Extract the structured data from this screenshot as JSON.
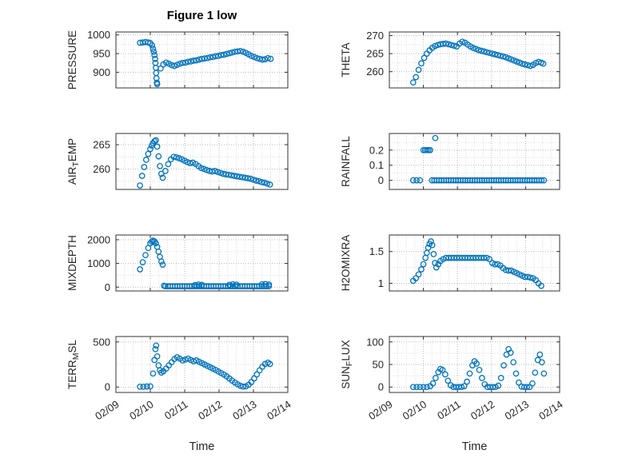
{
  "chart_data": {
    "type": "scatter",
    "figure_title": "Figure 1 low",
    "xlabel": "Time",
    "x_ticks": [
      "02/09",
      "02/10",
      "02/11",
      "02/12",
      "02/13",
      "02/14"
    ],
    "x_range_days": [
      0,
      5
    ],
    "grid": "dotted",
    "legend": "none",
    "colors": {
      "marker": "#0072BD",
      "axis": "#333333",
      "grid_major": "#b9b9b9",
      "grid_minor": "#dedede",
      "tick_text": "#262626"
    },
    "subplots": [
      {
        "ylabel": "PRESSURE",
        "yticks": [
          900,
          950,
          1000
        ],
        "ylim": [
          858,
          1008
        ],
        "x": [
          0.7,
          0.78,
          0.86,
          0.94,
          1.0,
          1.05,
          1.08,
          1.1,
          1.12,
          1.14,
          1.15,
          1.16,
          1.17,
          1.18,
          1.19,
          1.2,
          1.3,
          1.38,
          1.46,
          1.54,
          1.62,
          1.7,
          1.78,
          1.86,
          1.94,
          2.02,
          2.1,
          2.18,
          2.26,
          2.34,
          2.42,
          2.5,
          2.58,
          2.66,
          2.74,
          2.82,
          2.9,
          2.98,
          3.06,
          3.14,
          3.22,
          3.3,
          3.38,
          3.46,
          3.54,
          3.62,
          3.7,
          3.78,
          3.86,
          3.94,
          4.02,
          4.1,
          4.18,
          4.26,
          4.34,
          4.42,
          4.5
        ],
        "y": [
          979,
          980,
          981,
          980,
          978,
          972,
          963,
          955,
          946,
          936,
          925,
          912,
          898,
          884,
          872,
          868,
          910,
          921,
          926,
          923,
          919,
          917,
          920,
          923,
          925,
          926,
          928,
          929,
          931,
          932,
          934,
          936,
          937,
          938,
          940,
          941,
          943,
          944,
          946,
          947,
          949,
          951,
          953,
          955,
          956,
          957,
          955,
          952,
          948,
          944,
          941,
          938,
          936,
          934,
          935,
          938,
          936
        ]
      },
      {
        "ylabel": "THETA",
        "yticks": [
          260,
          265,
          270
        ],
        "ylim": [
          255.5,
          271
        ],
        "x": [
          0.7,
          0.78,
          0.86,
          0.94,
          1.02,
          1.1,
          1.18,
          1.26,
          1.34,
          1.42,
          1.5,
          1.58,
          1.66,
          1.74,
          1.82,
          1.9,
          1.98,
          2.06,
          2.14,
          2.22,
          2.3,
          2.38,
          2.46,
          2.54,
          2.62,
          2.7,
          2.78,
          2.86,
          2.94,
          3.02,
          3.1,
          3.18,
          3.26,
          3.34,
          3.42,
          3.5,
          3.58,
          3.66,
          3.74,
          3.82,
          3.9,
          3.98,
          4.06,
          4.14,
          4.22,
          4.3,
          4.38,
          4.46,
          4.52
        ],
        "y": [
          257.0,
          258.5,
          260.5,
          262.3,
          263.8,
          265.0,
          265.9,
          266.6,
          267.1,
          267.4,
          267.6,
          267.7,
          267.8,
          267.6,
          267.4,
          267.2,
          267.0,
          267.8,
          268.3,
          268.0,
          267.5,
          267.0,
          266.6,
          266.3,
          266.0,
          265.8,
          265.6,
          265.4,
          265.2,
          265.0,
          264.8,
          264.6,
          264.4,
          264.2,
          264.0,
          263.7,
          263.4,
          263.1,
          262.8,
          262.5,
          262.2,
          262.0,
          261.8,
          261.6,
          261.9,
          262.4,
          262.7,
          262.5,
          262.2
        ]
      },
      {
        "ylabel": "AIR_TEMP",
        "yticks": [
          260,
          265
        ],
        "ylim": [
          255.8,
          267.3
        ],
        "x": [
          0.7,
          0.76,
          0.82,
          0.88,
          0.94,
          1.0,
          1.04,
          1.08,
          1.12,
          1.16,
          1.2,
          1.24,
          1.28,
          1.32,
          1.36,
          1.44,
          1.52,
          1.6,
          1.68,
          1.76,
          1.84,
          1.92,
          2.0,
          2.08,
          2.16,
          2.24,
          2.32,
          2.4,
          2.48,
          2.56,
          2.64,
          2.72,
          2.8,
          2.88,
          2.96,
          3.04,
          3.12,
          3.2,
          3.28,
          3.36,
          3.44,
          3.52,
          3.6,
          3.68,
          3.76,
          3.84,
          3.92,
          4.0,
          4.08,
          4.16,
          4.24,
          4.32,
          4.4,
          4.48
        ],
        "y": [
          256.6,
          258.6,
          260.4,
          261.9,
          263.1,
          264.1,
          264.8,
          265.3,
          265.7,
          265.9,
          264.6,
          262.6,
          260.6,
          259.0,
          258.2,
          259.6,
          261.0,
          262.0,
          262.5,
          262.4,
          262.2,
          262.0,
          261.7,
          261.4,
          261.2,
          261.3,
          261.0,
          260.6,
          260.2,
          260.0,
          259.8,
          259.6,
          259.5,
          259.6,
          259.4,
          259.2,
          259.0,
          258.9,
          258.8,
          258.7,
          258.6,
          258.5,
          258.4,
          258.3,
          258.2,
          258.1,
          258.0,
          257.8,
          257.6,
          257.5,
          257.3,
          257.2,
          257.0,
          256.8
        ]
      },
      {
        "ylabel": "RAINFALL",
        "yticks": [
          0,
          0.1,
          0.2
        ],
        "ylim": [
          -0.06,
          0.31
        ],
        "x": [
          0.7,
          0.8,
          0.9,
          1.0,
          1.05,
          1.1,
          1.15,
          1.2,
          1.35
        ],
        "y": [
          0,
          0,
          0,
          0.2,
          0.2,
          0.2,
          0.2,
          0.2,
          0.28
        ],
        "runs": [
          {
            "x0": 1.25,
            "x1": 4.56,
            "dx": 0.07,
            "y": 0
          }
        ]
      },
      {
        "ylabel": "MIXDEPTH",
        "yticks": [
          0,
          1000,
          2000
        ],
        "ylim": [
          -160,
          2200
        ],
        "x": [
          0.7,
          0.78,
          0.86,
          0.94,
          1.0,
          1.04,
          1.08,
          1.12,
          1.16,
          1.2,
          1.24,
          1.28,
          1.32,
          1.36,
          1.4,
          2.3,
          2.4,
          2.5,
          3.3,
          3.4,
          3.5,
          4.25,
          4.35,
          4.45
        ],
        "y": [
          750,
          1050,
          1350,
          1650,
          1850,
          1920,
          1960,
          1930,
          1850,
          1700,
          1500,
          1280,
          1080,
          950,
          60,
          90,
          110,
          95,
          100,
          120,
          105,
          120,
          130,
          110
        ],
        "runs": [
          {
            "x0": 1.44,
            "x1": 4.5,
            "dx": 0.07,
            "y": 40
          }
        ]
      },
      {
        "ylabel": "H2OMIXRA",
        "yticks": [
          1,
          1.5
        ],
        "ylim": [
          0.88,
          1.76
        ],
        "x": [
          0.7,
          0.78,
          0.86,
          0.94,
          1.0,
          1.06,
          1.1,
          1.14,
          1.18,
          1.22,
          1.26,
          1.3,
          1.34,
          1.38,
          1.44,
          1.5,
          1.58,
          1.66,
          1.74,
          1.82,
          1.9,
          1.98,
          2.06,
          2.14,
          2.22,
          2.3,
          2.38,
          2.46,
          2.54,
          2.62,
          2.7,
          2.78,
          2.86,
          2.94,
          3.02,
          3.1,
          3.18,
          3.26,
          3.34,
          3.42,
          3.5,
          3.58,
          3.66,
          3.74,
          3.82,
          3.9,
          3.98,
          4.06,
          4.14,
          4.22,
          4.3,
          4.38,
          4.46
        ],
        "y": [
          1.04,
          1.08,
          1.14,
          1.22,
          1.3,
          1.4,
          1.48,
          1.56,
          1.62,
          1.66,
          1.6,
          1.46,
          1.32,
          1.25,
          1.3,
          1.35,
          1.38,
          1.4,
          1.4,
          1.4,
          1.4,
          1.4,
          1.4,
          1.4,
          1.4,
          1.4,
          1.4,
          1.4,
          1.4,
          1.4,
          1.4,
          1.4,
          1.4,
          1.38,
          1.32,
          1.3,
          1.3,
          1.28,
          1.24,
          1.21,
          1.2,
          1.2,
          1.18,
          1.16,
          1.14,
          1.12,
          1.1,
          1.1,
          1.09,
          1.08,
          1.05,
          1.0,
          0.96
        ]
      },
      {
        "ylabel": "TERR_MSL",
        "yticks": [
          0,
          500
        ],
        "ylim": [
          -60,
          560
        ],
        "x": [
          0.7,
          0.8,
          0.9,
          1.0,
          1.08,
          1.12,
          1.15,
          1.17,
          1.2,
          1.24,
          1.28,
          1.32,
          1.38,
          1.46,
          1.54,
          1.62,
          1.7,
          1.78,
          1.86,
          1.94,
          2.02,
          2.1,
          2.18,
          2.26,
          2.34,
          2.42,
          2.5,
          2.58,
          2.66,
          2.74,
          2.82,
          2.9,
          2.98,
          3.06,
          3.14,
          3.22,
          3.3,
          3.38,
          3.46,
          3.54,
          3.62,
          3.7,
          3.78,
          3.86,
          3.94,
          4.02,
          4.1,
          4.18,
          4.26,
          4.34,
          4.42,
          4.48
        ],
        "y": [
          4,
          4,
          6,
          8,
          150,
          300,
          420,
          460,
          340,
          240,
          185,
          160,
          175,
          205,
          240,
          275,
          310,
          330,
          315,
          295,
          305,
          315,
          300,
          285,
          295,
          280,
          265,
          250,
          235,
          220,
          205,
          190,
          172,
          155,
          138,
          118,
          95,
          72,
          50,
          30,
          14,
          5,
          8,
          25,
          55,
          95,
          140,
          185,
          225,
          255,
          270,
          255
        ]
      },
      {
        "ylabel": "SUN_FLUX",
        "yticks": [
          0,
          50,
          100
        ],
        "ylim": [
          -12,
          112
        ],
        "x": [
          0.7,
          0.8,
          0.9,
          1.0,
          1.1,
          1.2,
          1.28,
          1.36,
          1.44,
          1.5,
          1.56,
          1.64,
          1.72,
          1.8,
          1.88,
          1.96,
          2.04,
          2.12,
          2.2,
          2.28,
          2.36,
          2.44,
          2.5,
          2.56,
          2.64,
          2.72,
          2.8,
          2.88,
          2.96,
          3.04,
          3.12,
          3.2,
          3.28,
          3.36,
          3.44,
          3.5,
          3.56,
          3.64,
          3.72,
          3.8,
          3.88,
          3.96,
          4.04,
          4.12,
          4.2,
          4.28,
          4.36,
          4.42,
          4.48,
          4.54
        ],
        "y": [
          0,
          0,
          0,
          0,
          0,
          2,
          8,
          20,
          33,
          40,
          38,
          28,
          14,
          4,
          0,
          0,
          0,
          0,
          2,
          12,
          30,
          48,
          57,
          52,
          38,
          20,
          6,
          0,
          0,
          0,
          0,
          3,
          20,
          48,
          72,
          84,
          76,
          55,
          30,
          10,
          1,
          0,
          0,
          0,
          8,
          32,
          60,
          72,
          55,
          30
        ]
      }
    ]
  }
}
